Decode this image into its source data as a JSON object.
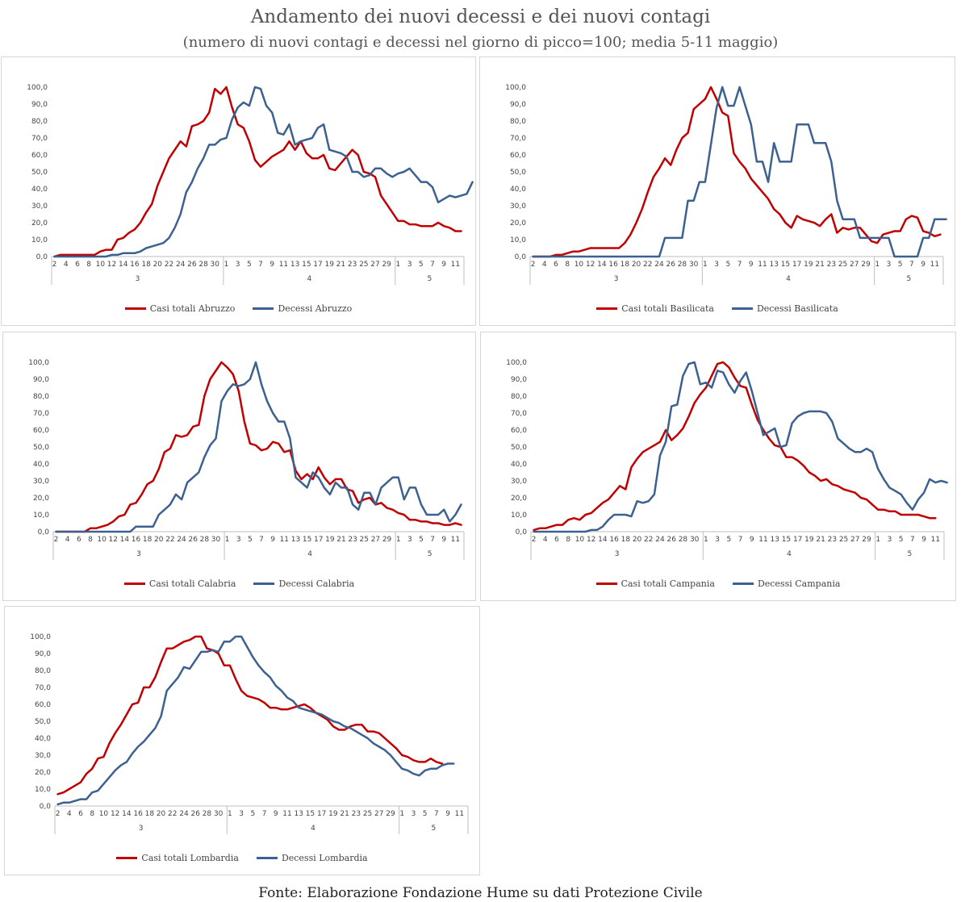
{
  "title": "Andamento dei nuovi decessi e dei nuovi contagi",
  "subtitle": "(numero di nuovi contagi e decessi nel giorno di picco=100; media 5-11 maggio)",
  "footer": "Fonte: Elaborazione Fondazione Hume su dati Protezione Civile",
  "colors": {
    "casi": "#c00000",
    "decessi": "#3c6190"
  },
  "chart_data": [
    {
      "type": "line",
      "region": "Abruzzo",
      "xlabel": "",
      "ylabel": "",
      "ylim": [
        0,
        100
      ],
      "y_ticks": [
        "0,0",
        "10,0",
        "20,0",
        "30,0",
        "40,0",
        "50,0",
        "60,0",
        "70,0",
        "80,0",
        "90,0",
        "100,0"
      ],
      "x_tick_labels": [
        "2",
        "4",
        "6",
        "8",
        "10",
        "12",
        "14",
        "16",
        "18",
        "20",
        "22",
        "24",
        "26",
        "28",
        "30",
        "1",
        "3",
        "5",
        "7",
        "9",
        "11",
        "13",
        "15",
        "17",
        "19",
        "21",
        "23",
        "25",
        "27",
        "29",
        "1",
        "3",
        "5",
        "7",
        "9",
        "11"
      ],
      "months": [
        "3",
        "4",
        "5"
      ],
      "legend_position": "bottom",
      "grid": false,
      "series": [
        {
          "name": "Casi totali Abruzzo",
          "values": [
            0,
            1,
            1,
            1,
            1,
            1,
            1,
            1,
            3,
            4,
            4,
            10,
            11,
            14,
            16,
            20,
            26,
            31,
            42,
            50,
            58,
            63,
            68,
            65,
            77,
            78,
            80,
            85,
            99,
            96,
            100,
            88,
            78,
            76,
            68,
            57,
            53,
            56,
            59,
            61,
            63,
            68,
            63,
            68,
            61,
            58,
            58,
            60,
            52,
            51,
            55,
            59,
            63,
            60,
            50,
            49,
            47,
            36,
            31,
            26,
            21,
            21,
            19,
            19,
            18,
            18,
            18,
            20,
            18,
            17,
            15,
            15
          ]
        },
        {
          "name": "Decessi Abruzzo",
          "values": [
            0,
            0,
            0,
            0,
            0,
            0,
            0,
            0,
            0,
            0,
            1,
            1,
            2,
            2,
            2,
            3,
            5,
            6,
            7,
            8,
            11,
            17,
            25,
            38,
            44,
            52,
            58,
            66,
            66,
            69,
            70,
            81,
            88,
            91,
            89,
            100,
            99,
            89,
            85,
            73,
            72,
            78,
            66,
            68,
            69,
            70,
            76,
            78,
            63,
            62,
            61,
            59,
            50,
            50,
            47,
            48,
            52,
            52,
            49,
            47,
            49,
            50,
            52,
            48,
            44,
            44,
            41,
            32,
            34,
            36,
            35,
            36,
            37,
            44
          ]
        }
      ]
    },
    {
      "type": "line",
      "region": "Basilicata",
      "xlabel": "",
      "ylabel": "",
      "ylim": [
        0,
        100
      ],
      "y_ticks": [
        "0,0",
        "10,0",
        "20,0",
        "30,0",
        "40,0",
        "50,0",
        "60,0",
        "70,0",
        "80,0",
        "90,0",
        "100,0"
      ],
      "x_tick_labels": [
        "2",
        "4",
        "6",
        "8",
        "10",
        "12",
        "14",
        "16",
        "18",
        "20",
        "22",
        "24",
        "26",
        "28",
        "30",
        "1",
        "3",
        "5",
        "7",
        "9",
        "11",
        "13",
        "15",
        "17",
        "19",
        "21",
        "23",
        "25",
        "27",
        "29",
        "1",
        "3",
        "5",
        "7",
        "9",
        "11"
      ],
      "months": [
        "3",
        "4",
        "5"
      ],
      "legend_position": "bottom",
      "grid": false,
      "series": [
        {
          "name": "Casi totali Basilicata",
          "values": [
            0,
            0,
            0,
            0,
            1,
            1,
            2,
            3,
            3,
            4,
            5,
            5,
            5,
            5,
            5,
            5,
            8,
            13,
            20,
            28,
            38,
            47,
            52,
            58,
            54,
            63,
            70,
            73,
            87,
            90,
            93,
            100,
            93,
            85,
            83,
            61,
            56,
            52,
            46,
            42,
            38,
            34,
            28,
            25,
            20,
            17,
            24,
            22,
            21,
            20,
            18,
            22,
            25,
            14,
            17,
            16,
            17,
            17,
            13,
            9,
            8,
            13,
            14,
            15,
            15,
            22,
            24,
            23,
            15,
            14,
            12,
            13
          ]
        },
        {
          "name": "Decessi Basilicata",
          "values": [
            0,
            0,
            0,
            0,
            0,
            0,
            0,
            0,
            0,
            0,
            0,
            0,
            0,
            0,
            0,
            0,
            0,
            0,
            0,
            0,
            0,
            0,
            0,
            11,
            11,
            11,
            11,
            33,
            33,
            44,
            44,
            66,
            88,
            100,
            89,
            89,
            100,
            89,
            78,
            56,
            56,
            44,
            67,
            56,
            56,
            56,
            78,
            78,
            78,
            67,
            67,
            67,
            56,
            33,
            22,
            22,
            22,
            11,
            11,
            11,
            11,
            11,
            11,
            0,
            0,
            0,
            0,
            0,
            11,
            11,
            22,
            22,
            22
          ]
        }
      ]
    },
    {
      "type": "line",
      "region": "Calabria",
      "xlabel": "",
      "ylabel": "",
      "ylim": [
        0,
        100
      ],
      "y_ticks": [
        "0,0",
        "10,0",
        "20,0",
        "30,0",
        "40,0",
        "50,0",
        "60,0",
        "70,0",
        "80,0",
        "90,0",
        "100,0"
      ],
      "x_tick_labels": [
        "2",
        "4",
        "6",
        "8",
        "10",
        "12",
        "14",
        "16",
        "18",
        "20",
        "22",
        "24",
        "26",
        "28",
        "30",
        "1",
        "3",
        "5",
        "7",
        "9",
        "11",
        "13",
        "15",
        "17",
        "19",
        "21",
        "23",
        "25",
        "27",
        "29",
        "1",
        "3",
        "5",
        "7",
        "9",
        "11"
      ],
      "months": [
        "3",
        "4",
        "5"
      ],
      "legend_position": "bottom",
      "grid": false,
      "series": [
        {
          "name": "Casi totali Calabria",
          "values": [
            0,
            0,
            0,
            0,
            0,
            0,
            2,
            2,
            3,
            4,
            6,
            9,
            10,
            16,
            17,
            22,
            28,
            30,
            37,
            47,
            49,
            57,
            56,
            57,
            62,
            63,
            80,
            90,
            95,
            100,
            97,
            93,
            83,
            65,
            52,
            51,
            48,
            49,
            53,
            52,
            47,
            48,
            36,
            31,
            34,
            31,
            38,
            32,
            28,
            31,
            31,
            25,
            24,
            17,
            19,
            20,
            16,
            17,
            14,
            13,
            11,
            10,
            7,
            7,
            6,
            6,
            5,
            5,
            4,
            4,
            5,
            4
          ]
        },
        {
          "name": "Decessi Calabria",
          "values": [
            0,
            0,
            0,
            0,
            0,
            0,
            0,
            0,
            0,
            0,
            0,
            0,
            0,
            0,
            3,
            3,
            3,
            3,
            10,
            13,
            16,
            22,
            19,
            29,
            32,
            35,
            44,
            51,
            55,
            77,
            83,
            87,
            86,
            87,
            90,
            100,
            87,
            77,
            70,
            65,
            65,
            55,
            32,
            29,
            26,
            35,
            32,
            26,
            22,
            29,
            26,
            26,
            16,
            13,
            23,
            23,
            16,
            26,
            29,
            32,
            32,
            19,
            26,
            26,
            16,
            10,
            10,
            10,
            13,
            6,
            10,
            16
          ]
        }
      ]
    },
    {
      "type": "line",
      "region": "Campania",
      "xlabel": "",
      "ylabel": "",
      "ylim": [
        0,
        100
      ],
      "y_ticks": [
        "0,0",
        "10,0",
        "20,0",
        "30,0",
        "40,0",
        "50,0",
        "60,0",
        "70,0",
        "80,0",
        "90,0",
        "100,0"
      ],
      "x_tick_labels": [
        "2",
        "4",
        "6",
        "8",
        "10",
        "12",
        "14",
        "16",
        "18",
        "20",
        "22",
        "24",
        "26",
        "28",
        "30",
        "1",
        "3",
        "5",
        "7",
        "9",
        "11",
        "13",
        "15",
        "17",
        "19",
        "21",
        "23",
        "25",
        "27",
        "29",
        "1",
        "3",
        "5",
        "7",
        "9",
        "11"
      ],
      "months": [
        "3",
        "4",
        "5"
      ],
      "legend_position": "bottom",
      "grid": false,
      "series": [
        {
          "name": "Casi totali Campania",
          "values": [
            1,
            2,
            2,
            3,
            4,
            4,
            7,
            8,
            7,
            10,
            11,
            14,
            17,
            19,
            23,
            27,
            25,
            38,
            43,
            47,
            49,
            51,
            53,
            60,
            54,
            57,
            61,
            68,
            76,
            81,
            85,
            92,
            99,
            100,
            97,
            91,
            86,
            85,
            75,
            66,
            60,
            55,
            51,
            50,
            44,
            44,
            42,
            39,
            35,
            33,
            30,
            31,
            28,
            27,
            25,
            24,
            23,
            20,
            19,
            16,
            13,
            13,
            12,
            12,
            10,
            10,
            10,
            10,
            9,
            8,
            8
          ]
        },
        {
          "name": "Decessi Campania",
          "values": [
            0,
            0,
            0,
            0,
            0,
            0,
            0,
            0,
            0,
            0,
            1,
            1,
            3,
            7,
            10,
            10,
            10,
            9,
            18,
            17,
            18,
            22,
            45,
            53,
            74,
            75,
            92,
            99,
            100,
            87,
            88,
            85,
            95,
            94,
            87,
            82,
            89,
            94,
            83,
            70,
            57,
            59,
            61,
            50,
            51,
            64,
            68,
            70,
            71,
            71,
            71,
            70,
            65,
            55,
            52,
            49,
            47,
            47,
            49,
            47,
            37,
            31,
            26,
            24,
            22,
            17,
            13,
            19,
            23,
            31,
            29,
            30,
            29
          ]
        }
      ]
    },
    {
      "type": "line",
      "region": "Lombardia",
      "xlabel": "",
      "ylabel": "",
      "ylim": [
        0,
        100
      ],
      "y_ticks": [
        "0,0",
        "10,0",
        "20,0",
        "30,0",
        "40,0",
        "50,0",
        "60,0",
        "70,0",
        "80,0",
        "90,0",
        "100,0"
      ],
      "x_tick_labels": [
        "2",
        "4",
        "6",
        "8",
        "10",
        "12",
        "14",
        "16",
        "18",
        "20",
        "22",
        "24",
        "26",
        "28",
        "30",
        "1",
        "3",
        "5",
        "7",
        "9",
        "11",
        "13",
        "15",
        "17",
        "19",
        "21",
        "23",
        "25",
        "27",
        "29",
        "1",
        "3",
        "5",
        "7",
        "9",
        "11"
      ],
      "months": [
        "3",
        "4",
        "5"
      ],
      "legend_position": "bottom",
      "grid": false,
      "series": [
        {
          "name": "Casi totali Lombardia",
          "values": [
            7,
            8,
            10,
            12,
            14,
            19,
            22,
            28,
            29,
            37,
            43,
            48,
            54,
            60,
            61,
            70,
            70,
            76,
            85,
            93,
            93,
            95,
            97,
            98,
            100,
            100,
            93,
            92,
            90,
            83,
            83,
            75,
            68,
            65,
            64,
            63,
            61,
            58,
            58,
            57,
            57,
            58,
            59,
            60,
            58,
            55,
            53,
            51,
            47,
            45,
            45,
            47,
            48,
            48,
            44,
            44,
            43,
            40,
            37,
            34,
            30,
            29,
            27,
            26,
            26,
            28,
            26,
            25
          ]
        },
        {
          "name": "Decessi Lombardia",
          "values": [
            1,
            2,
            2,
            3,
            4,
            4,
            8,
            9,
            13,
            17,
            21,
            24,
            26,
            31,
            35,
            38,
            42,
            46,
            53,
            68,
            72,
            76,
            82,
            81,
            86,
            91,
            91,
            92,
            91,
            97,
            97,
            100,
            100,
            94,
            88,
            83,
            79,
            76,
            71,
            68,
            64,
            62,
            58,
            57,
            56,
            55,
            54,
            52,
            50,
            49,
            47,
            46,
            44,
            42,
            40,
            37,
            35,
            33,
            30,
            26,
            22,
            21,
            19,
            18,
            21,
            22,
            22,
            24,
            25,
            25
          ]
        }
      ]
    }
  ]
}
